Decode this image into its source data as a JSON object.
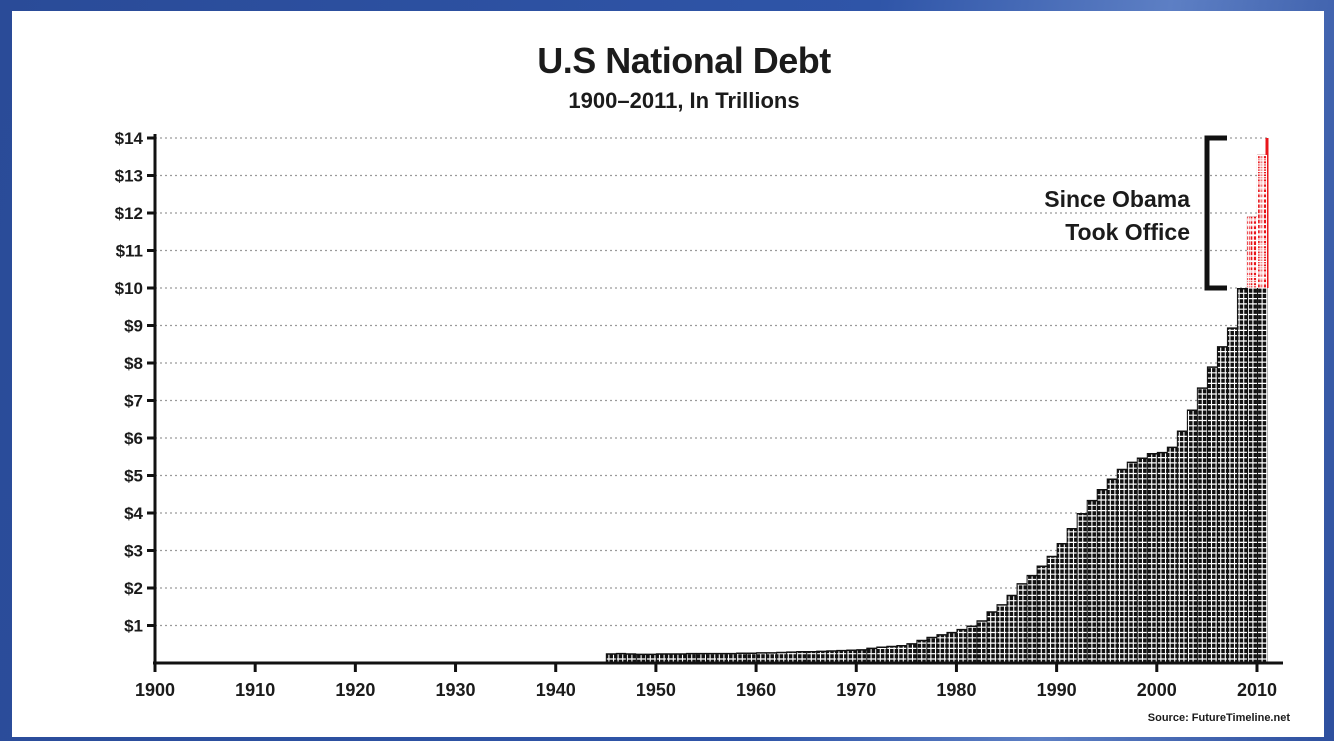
{
  "chart_data": {
    "type": "bar",
    "title": "U.S National Debt",
    "subtitle": "1900–2011, In Trillions",
    "source": "Source: FutureTimeline.net",
    "annotation": [
      "Since Obama",
      "Took Office"
    ],
    "xlim": [
      1900,
      2011
    ],
    "ylim": [
      0,
      14
    ],
    "x_ticks": [
      "1900",
      "1910",
      "1920",
      "1930",
      "1940",
      "1950",
      "1960",
      "1970",
      "1980",
      "1990",
      "2000",
      "2010"
    ],
    "y_ticks": [
      "$1",
      "$2",
      "$3",
      "$4",
      "$5",
      "$6",
      "$7",
      "$8",
      "$9",
      "$10",
      "$11",
      "$12",
      "$13",
      "$14"
    ],
    "grid": true,
    "colors": {
      "bars": "#111111",
      "highlight": "#e8151b",
      "grid": "#9a9a9a"
    },
    "highlight_series": "Since Obama Took Office",
    "years": [
      1945,
      1946,
      1947,
      1948,
      1949,
      1950,
      1951,
      1952,
      1953,
      1954,
      1955,
      1956,
      1957,
      1958,
      1959,
      1960,
      1961,
      1962,
      1963,
      1964,
      1965,
      1966,
      1967,
      1968,
      1969,
      1970,
      1971,
      1972,
      1973,
      1974,
      1975,
      1976,
      1977,
      1978,
      1979,
      1980,
      1981,
      1982,
      1983,
      1984,
      1985,
      1986,
      1987,
      1988,
      1989,
      1990,
      1991,
      1992,
      1993,
      1994,
      1995,
      1996,
      1997,
      1998,
      1999,
      2000,
      2001,
      2002,
      2003,
      2004,
      2005,
      2006,
      2007,
      2008,
      2009,
      2010
    ],
    "values": [
      0.26,
      0.27,
      0.26,
      0.25,
      0.25,
      0.26,
      0.26,
      0.26,
      0.27,
      0.27,
      0.27,
      0.27,
      0.27,
      0.28,
      0.28,
      0.29,
      0.29,
      0.3,
      0.31,
      0.32,
      0.32,
      0.33,
      0.34,
      0.35,
      0.36,
      0.37,
      0.41,
      0.44,
      0.46,
      0.48,
      0.53,
      0.62,
      0.7,
      0.77,
      0.83,
      0.91,
      1.0,
      1.14,
      1.38,
      1.57,
      1.82,
      2.13,
      2.35,
      2.6,
      2.86,
      3.2,
      3.6,
      4.0,
      4.35,
      4.64,
      4.92,
      5.18,
      5.37,
      5.48,
      5.6,
      5.63,
      5.77,
      6.2,
      6.76,
      7.35,
      7.91,
      8.45,
      8.95,
      10.0,
      11.9,
      13.55
    ],
    "highlight_values": {
      "2009": {
        "base": 10.0,
        "top": 11.9
      },
      "2010": {
        "base": 10.0,
        "top": 13.55
      },
      "2011": {
        "base": 10.0,
        "top": 14.0
      }
    }
  }
}
